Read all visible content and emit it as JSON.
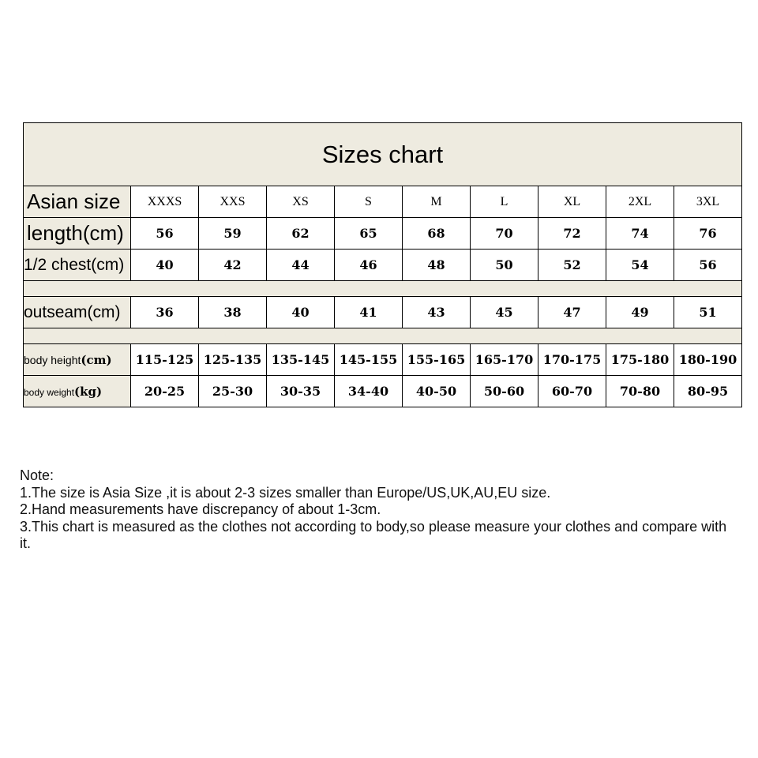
{
  "title": "Sizes chart",
  "colors": {
    "header_bg": "#eeebe0",
    "border": "#000000"
  },
  "size_row": {
    "label": "Asian size",
    "values": [
      "XXXS",
      "XXS",
      "XS",
      "S",
      "M",
      "L",
      "XL",
      "2XL",
      "3XL"
    ]
  },
  "rows": [
    {
      "label": "length(cm)",
      "values": [
        "56",
        "59",
        "62",
        "65",
        "68",
        "70",
        "72",
        "74",
        "76"
      ]
    },
    {
      "label": "1/2 chest(cm)",
      "values": [
        "40",
        "42",
        "44",
        "46",
        "48",
        "50",
        "52",
        "54",
        "56"
      ]
    },
    {
      "label": "outseam(cm)",
      "values": [
        "36",
        "38",
        "40",
        "41",
        "43",
        "45",
        "47",
        "49",
        "51"
      ]
    },
    {
      "label": "body height",
      "unit": "(cm)",
      "values": [
        "115-125",
        "125-135",
        "135-145",
        "145-155",
        "155-165",
        "165-170",
        "170-175",
        "175-180",
        "180-190"
      ]
    },
    {
      "label": "body weight",
      "unit": "(kg)",
      "values": [
        "20-25",
        "25-30",
        "30-35",
        "34-40",
        "40-50",
        "50-60",
        "60-70",
        "70-80",
        "80-95"
      ]
    }
  ],
  "notes": {
    "heading": "Note:",
    "items": [
      "1.The size is Asia Size ,it is about 2-3 sizes smaller than Europe/US,UK,AU,EU size.",
      "2.Hand measurements have discrepancy of about 1-3cm.",
      "3.This chart is measured as the clothes not according to body,so please measure your clothes and compare with it."
    ]
  }
}
